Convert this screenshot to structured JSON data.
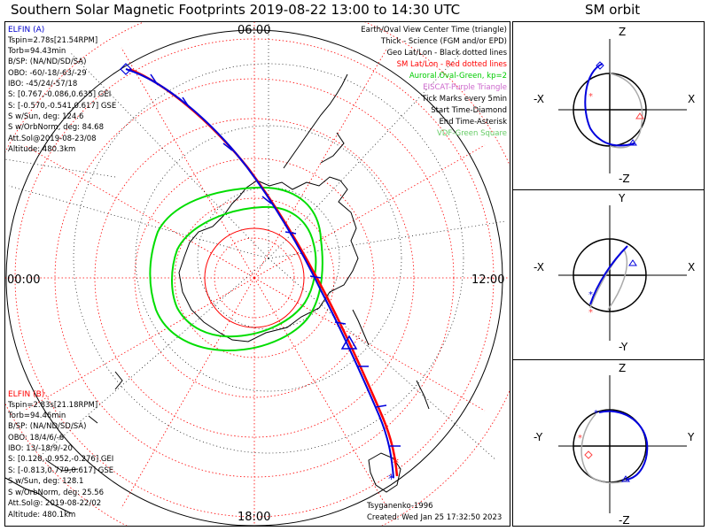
{
  "title": "Southern Solar Magnetic Footprints 2019-08-22 13:00 to 14:30 UTC",
  "sm_title": "SM orbit",
  "clock_labels": {
    "top": "06:00",
    "left": "00:00",
    "right": "12:00",
    "bottom": "18:00"
  },
  "elfin_a": {
    "name": "ELFIN (A)",
    "color": "#0000cc",
    "lines": [
      "Tspin=2.78s[21.54RPM]",
      "Torb=94.43min",
      "B/SP: (NA/ND/SD/SA)",
      "OBO: -60/-18/-63/-29",
      "IBO: -45/24/-57/18",
      "S: [0.767,-0.086,0.635] GEI",
      "S: [-0.570,-0.541,0.617] GSE",
      "S w/Sun, deg: 124.6",
      "S w/OrbNorm, deg: 84.68",
      "Att.Sol@2019-08-23/08",
      "Altitude: 480.3km"
    ]
  },
  "elfin_b": {
    "name": "ELFIN (B)",
    "color": "#ff0000",
    "lines": [
      "Tspin=2.83s[21.18RPM]",
      "Torb=94.46min",
      "B/SP: (NA/ND/SD/SA)",
      "OBO: 18/4/6/-6",
      "IBO: 13/-18/9/-20",
      "S: [0.128,-0.952,-0.276] GEI",
      "S: [-0.813,0.779,0.617] GSE",
      "S w/Sun, deg: 128.1",
      "S w/OrbNorm, deg: 25.56",
      "Att.Sol@: 2019-08-22/02",
      "Altitude: 480.1km"
    ]
  },
  "legend": [
    {
      "text": "Earth/Oval View Center Time (triangle)",
      "color": "#000000"
    },
    {
      "text": "Thick - Science (FGM and/or EPD)",
      "color": "#000000"
    },
    {
      "text": "Geo Lat/Lon - Black dotted lines",
      "color": "#000000"
    },
    {
      "text": "SM Lat/Lon - Red dotted lines",
      "color": "#ff0000"
    },
    {
      "text": "Auroral Oval-Green, kp=2",
      "color": "#00cc00"
    },
    {
      "text": "EISCAT-Purple Triangle",
      "color": "#cc66cc"
    },
    {
      "text": "Tick Marks every 5min",
      "color": "#000000"
    },
    {
      "text": "Start Time-Diamond",
      "color": "#000000"
    },
    {
      "text": "End Time-Asterisk",
      "color": "#000000"
    },
    {
      "text": "VDF-Green Square",
      "color": "#66cc66"
    }
  ],
  "footer": {
    "model": "Tsyganenko-1996",
    "created": "Created: Wed Jan 25 17:32:50 2023"
  },
  "sm_panels": [
    {
      "top": "Z",
      "bottom": "-Z",
      "left": "-X",
      "right": "X"
    },
    {
      "top": "Y",
      "bottom": "-Y",
      "left": "-X",
      "right": "X"
    },
    {
      "top": "Z",
      "bottom": "-Z",
      "left": "-Y",
      "right": "Y"
    }
  ],
  "colors": {
    "elfin_a": "#0000cc",
    "elfin_b": "#ff0000",
    "oval": "#00dd00",
    "sm_grid": "#ff0000",
    "geo_grid": "#000000"
  }
}
